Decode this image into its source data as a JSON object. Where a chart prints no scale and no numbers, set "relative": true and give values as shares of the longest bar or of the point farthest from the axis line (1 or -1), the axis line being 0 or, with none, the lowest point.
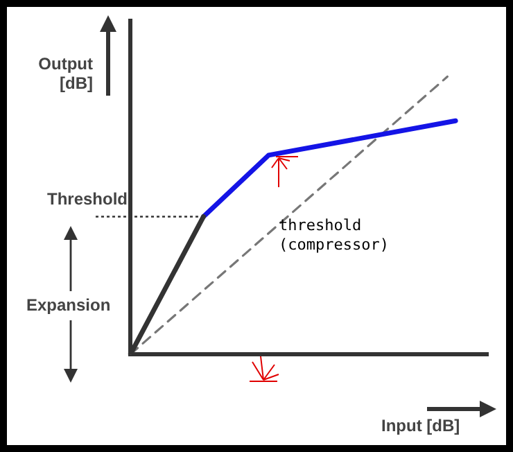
{
  "chart_data": {
    "type": "line",
    "relative": true,
    "xlabel": "Input [dB]",
    "ylabel": "Output [dB]",
    "categories": [
      null,
      null,
      null,
      null,
      null,
      null,
      null,
      null,
      null,
      null,
      null,
      null,
      null,
      null,
      null,
      null,
      null,
      null,
      null,
      null,
      null,
      null,
      null,
      null,
      null,
      null,
      null,
      null,
      null,
      null,
      null,
      null,
      null,
      null,
      null,
      null,
      null,
      null,
      null,
      null,
      null,
      null,
      null,
      null,
      null
    ],
    "series": [
      {
        "color": "#333333",
        "values": [
          0,
          null,
          null,
          null,
          null,
          null,
          null,
          null,
          null,
          0.496,
          null,
          null,
          null,
          null,
          null,
          null,
          null,
          null,
          null,
          null,
          null,
          null,
          null,
          null,
          null,
          null,
          null,
          null,
          null,
          null,
          null,
          null,
          null,
          null,
          null,
          null,
          null,
          null,
          null,
          null,
          null,
          null,
          null,
          null,
          null
        ]
      },
      {
        "color": "#1414e6",
        "values": [
          null,
          null,
          null,
          null,
          null,
          null,
          null,
          null,
          null,
          0.496,
          null,
          null,
          null,
          null,
          null,
          null,
          null,
          0.717,
          null,
          null,
          null,
          null,
          null,
          null,
          null,
          null,
          null,
          null,
          null,
          null,
          null,
          null,
          null,
          null,
          null,
          null,
          null,
          null,
          null,
          null,
          0.841,
          null,
          null,
          null,
          null
        ]
      },
      {
        "color": "#777777",
        "line_style": "dashed",
        "values": [
          0,
          null,
          null,
          null,
          null,
          null,
          null,
          null,
          null,
          null,
          null,
          null,
          null,
          null,
          null,
          null,
          null,
          null,
          null,
          null,
          null,
          null,
          null,
          null,
          null,
          null,
          null,
          null,
          null,
          null,
          null,
          null,
          null,
          null,
          null,
          null,
          null,
          null,
          null,
          1,
          null,
          null,
          null,
          null,
          null
        ]
      }
    ],
    "ref_lines": [
      {
        "axis": "y",
        "value": 0.496,
        "label": "Threshold",
        "line_style": "dotted",
        "color": "#333333"
      }
    ],
    "annotations": [
      "Expansion",
      "threshold (compressor)"
    ]
  }
}
